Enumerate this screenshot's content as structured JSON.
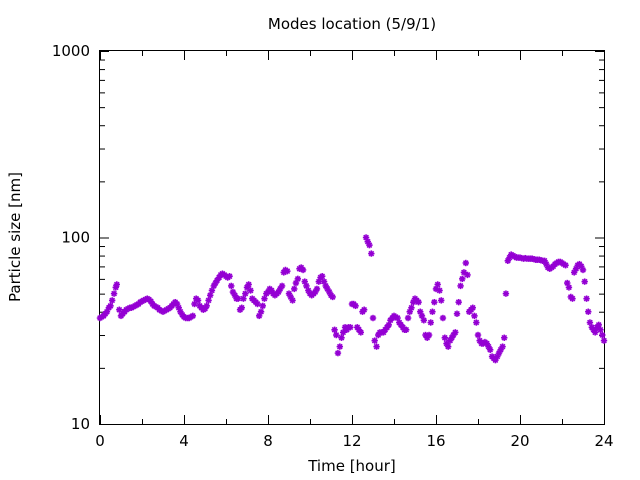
{
  "chart_data": {
    "type": "scatter",
    "title": "Modes location (5/9/1)",
    "xlabel": "Time [hour]",
    "ylabel": "Particle size [nm]",
    "xlim": [
      0,
      24
    ],
    "ylim": [
      10,
      1000
    ],
    "yscale": "log",
    "grid": false,
    "legend": "none",
    "marker": "asterisk",
    "color": "#9400d3",
    "xticks": [
      0,
      4,
      8,
      12,
      16,
      20,
      24
    ],
    "xtick_labels": [
      "0",
      "4",
      "8",
      "12",
      "16",
      "20",
      "24"
    ],
    "yticks": [
      10,
      100,
      1000
    ],
    "ytick_labels": [
      "10",
      "100",
      "1000"
    ],
    "points": [
      [
        0.0,
        37
      ],
      [
        0.08,
        37.5
      ],
      [
        0.17,
        38
      ],
      [
        0.25,
        39
      ],
      [
        0.33,
        40
      ],
      [
        0.42,
        42
      ],
      [
        0.5,
        43
      ],
      [
        0.58,
        46
      ],
      [
        0.67,
        50
      ],
      [
        0.75,
        54
      ],
      [
        0.8,
        56
      ],
      [
        0.92,
        41
      ],
      [
        1.0,
        38
      ],
      [
        1.08,
        39
      ],
      [
        1.17,
        40
      ],
      [
        1.25,
        41
      ],
      [
        1.33,
        41.5
      ],
      [
        1.42,
        42
      ],
      [
        1.5,
        42
      ],
      [
        1.58,
        42.5
      ],
      [
        1.67,
        43
      ],
      [
        1.75,
        43.5
      ],
      [
        1.83,
        44
      ],
      [
        1.92,
        45
      ],
      [
        2.0,
        45.5
      ],
      [
        2.08,
        46
      ],
      [
        2.17,
        46.5
      ],
      [
        2.25,
        47
      ],
      [
        2.33,
        46.5
      ],
      [
        2.42,
        45.5
      ],
      [
        2.5,
        44
      ],
      [
        2.58,
        43
      ],
      [
        2.67,
        42.5
      ],
      [
        2.75,
        42
      ],
      [
        2.83,
        41
      ],
      [
        2.92,
        40.5
      ],
      [
        3.0,
        40
      ],
      [
        3.08,
        40.5
      ],
      [
        3.17,
        41
      ],
      [
        3.25,
        41.5
      ],
      [
        3.33,
        42
      ],
      [
        3.42,
        43
      ],
      [
        3.5,
        44
      ],
      [
        3.58,
        45
      ],
      [
        3.67,
        44
      ],
      [
        3.75,
        42
      ],
      [
        3.83,
        40
      ],
      [
        3.92,
        38.5
      ],
      [
        4.0,
        37.5
      ],
      [
        4.08,
        37
      ],
      [
        4.17,
        37
      ],
      [
        4.25,
        37
      ],
      [
        4.33,
        37.5
      ],
      [
        4.42,
        38
      ],
      [
        4.5,
        44
      ],
      [
        4.58,
        47
      ],
      [
        4.67,
        46
      ],
      [
        4.75,
        43
      ],
      [
        4.83,
        42
      ],
      [
        4.92,
        41
      ],
      [
        5.0,
        41.5
      ],
      [
        5.08,
        43
      ],
      [
        5.17,
        46
      ],
      [
        5.25,
        49
      ],
      [
        5.33,
        52
      ],
      [
        5.42,
        55
      ],
      [
        5.5,
        57
      ],
      [
        5.58,
        59
      ],
      [
        5.67,
        61
      ],
      [
        5.75,
        63
      ],
      [
        5.83,
        64
      ],
      [
        5.92,
        63
      ],
      [
        6.0,
        62
      ],
      [
        6.08,
        61
      ],
      [
        6.17,
        62
      ],
      [
        6.25,
        55
      ],
      [
        6.33,
        51
      ],
      [
        6.42,
        49
      ],
      [
        6.5,
        47
      ],
      [
        6.58,
        47
      ],
      [
        6.67,
        41
      ],
      [
        6.75,
        42
      ],
      [
        6.83,
        47
      ],
      [
        6.92,
        50
      ],
      [
        7.0,
        54
      ],
      [
        7.08,
        56
      ],
      [
        7.17,
        52
      ],
      [
        7.25,
        47
      ],
      [
        7.33,
        46
      ],
      [
        7.42,
        45
      ],
      [
        7.5,
        44
      ],
      [
        7.58,
        38
      ],
      [
        7.67,
        40
      ],
      [
        7.75,
        43
      ],
      [
        7.83,
        47
      ],
      [
        7.92,
        50
      ],
      [
        8.0,
        51
      ],
      [
        8.08,
        53
      ],
      [
        8.17,
        52
      ],
      [
        8.25,
        50
      ],
      [
        8.33,
        49
      ],
      [
        8.42,
        50
      ],
      [
        8.5,
        51
      ],
      [
        8.58,
        53
      ],
      [
        8.67,
        55
      ],
      [
        8.75,
        65
      ],
      [
        8.83,
        67
      ],
      [
        8.92,
        66
      ],
      [
        9.0,
        50
      ],
      [
        9.08,
        48
      ],
      [
        9.17,
        46
      ],
      [
        9.25,
        53
      ],
      [
        9.33,
        57
      ],
      [
        9.42,
        60
      ],
      [
        9.5,
        68
      ],
      [
        9.58,
        69
      ],
      [
        9.67,
        67
      ],
      [
        9.75,
        58
      ],
      [
        9.83,
        55
      ],
      [
        9.92,
        52
      ],
      [
        10.0,
        50
      ],
      [
        10.08,
        49
      ],
      [
        10.17,
        50
      ],
      [
        10.25,
        51
      ],
      [
        10.33,
        53
      ],
      [
        10.42,
        58
      ],
      [
        10.5,
        61
      ],
      [
        10.58,
        62
      ],
      [
        10.67,
        58
      ],
      [
        10.75,
        55
      ],
      [
        10.83,
        53
      ],
      [
        10.92,
        51
      ],
      [
        11.0,
        49
      ],
      [
        11.08,
        48
      ],
      [
        11.17,
        32
      ],
      [
        11.25,
        30
      ],
      [
        11.33,
        24
      ],
      [
        11.42,
        26
      ],
      [
        11.5,
        29
      ],
      [
        11.58,
        31
      ],
      [
        11.67,
        33
      ],
      [
        11.75,
        32
      ],
      [
        11.83,
        33
      ],
      [
        11.92,
        33
      ],
      [
        12.0,
        44
      ],
      [
        12.08,
        44
      ],
      [
        12.17,
        43
      ],
      [
        12.25,
        33
      ],
      [
        12.33,
        32
      ],
      [
        12.42,
        31
      ],
      [
        12.5,
        40
      ],
      [
        12.58,
        41
      ],
      [
        12.67,
        100
      ],
      [
        12.75,
        95
      ],
      [
        12.83,
        91
      ],
      [
        12.92,
        82
      ],
      [
        13.0,
        37
      ],
      [
        13.08,
        28
      ],
      [
        13.17,
        26
      ],
      [
        13.25,
        30
      ],
      [
        13.33,
        31
      ],
      [
        13.42,
        31
      ],
      [
        13.5,
        31
      ],
      [
        13.58,
        32
      ],
      [
        13.67,
        33
      ],
      [
        13.75,
        34
      ],
      [
        13.83,
        36
      ],
      [
        13.92,
        37
      ],
      [
        14.0,
        38
      ],
      [
        14.08,
        37.5
      ],
      [
        14.17,
        37
      ],
      [
        14.25,
        35
      ],
      [
        14.33,
        34
      ],
      [
        14.42,
        33
      ],
      [
        14.5,
        32
      ],
      [
        14.58,
        32
      ],
      [
        14.67,
        37
      ],
      [
        14.75,
        40
      ],
      [
        14.83,
        42
      ],
      [
        14.92,
        45
      ],
      [
        15.0,
        47
      ],
      [
        15.08,
        46
      ],
      [
        15.17,
        45
      ],
      [
        15.25,
        40
      ],
      [
        15.33,
        38
      ],
      [
        15.42,
        36
      ],
      [
        15.5,
        30
      ],
      [
        15.58,
        29
      ],
      [
        15.67,
        30
      ],
      [
        15.75,
        35
      ],
      [
        15.83,
        40
      ],
      [
        15.92,
        45
      ],
      [
        16.0,
        53
      ],
      [
        16.08,
        56
      ],
      [
        16.17,
        52
      ],
      [
        16.25,
        46
      ],
      [
        16.33,
        37
      ],
      [
        16.42,
        29
      ],
      [
        16.5,
        27
      ],
      [
        16.58,
        26
      ],
      [
        16.67,
        28
      ],
      [
        16.75,
        29
      ],
      [
        16.83,
        30
      ],
      [
        16.92,
        31
      ],
      [
        17.0,
        39
      ],
      [
        17.08,
        45
      ],
      [
        17.17,
        55
      ],
      [
        17.25,
        60
      ],
      [
        17.33,
        65
      ],
      [
        17.42,
        73
      ],
      [
        17.5,
        63
      ],
      [
        17.58,
        40
      ],
      [
        17.67,
        41
      ],
      [
        17.75,
        42
      ],
      [
        17.83,
        38
      ],
      [
        17.92,
        35
      ],
      [
        18.0,
        30
      ],
      [
        18.08,
        28
      ],
      [
        18.17,
        27
      ],
      [
        18.25,
        27
      ],
      [
        18.33,
        27.5
      ],
      [
        18.42,
        27
      ],
      [
        18.5,
        26
      ],
      [
        18.58,
        25
      ],
      [
        18.67,
        23
      ],
      [
        18.75,
        22.5
      ],
      [
        18.83,
        22
      ],
      [
        18.92,
        23
      ],
      [
        19.0,
        24
      ],
      [
        19.08,
        25
      ],
      [
        19.17,
        26
      ],
      [
        19.25,
        29
      ],
      [
        19.33,
        50
      ],
      [
        19.42,
        75
      ],
      [
        19.5,
        78
      ],
      [
        19.58,
        81
      ],
      [
        19.67,
        80
      ],
      [
        19.75,
        79
      ],
      [
        19.83,
        78
      ],
      [
        19.92,
        78
      ],
      [
        20.0,
        78
      ],
      [
        20.08,
        77.5
      ],
      [
        20.17,
        77
      ],
      [
        20.25,
        77.5
      ],
      [
        20.33,
        77
      ],
      [
        20.42,
        77
      ],
      [
        20.5,
        77
      ],
      [
        20.58,
        77
      ],
      [
        20.67,
        76.5
      ],
      [
        20.75,
        76
      ],
      [
        20.83,
        76
      ],
      [
        20.92,
        76
      ],
      [
        21.0,
        75.5
      ],
      [
        21.08,
        75
      ],
      [
        21.17,
        75
      ],
      [
        21.25,
        72
      ],
      [
        21.33,
        69
      ],
      [
        21.42,
        68
      ],
      [
        21.5,
        69
      ],
      [
        21.58,
        70
      ],
      [
        21.67,
        72
      ],
      [
        21.75,
        73
      ],
      [
        21.83,
        74
      ],
      [
        21.92,
        74
      ],
      [
        22.0,
        73
      ],
      [
        22.08,
        72
      ],
      [
        22.17,
        71
      ],
      [
        22.25,
        57
      ],
      [
        22.33,
        54
      ],
      [
        22.42,
        48
      ],
      [
        22.5,
        47
      ],
      [
        22.58,
        65
      ],
      [
        22.67,
        68
      ],
      [
        22.75,
        71
      ],
      [
        22.83,
        72
      ],
      [
        22.92,
        70
      ],
      [
        23.0,
        67
      ],
      [
        23.08,
        58
      ],
      [
        23.17,
        47
      ],
      [
        23.25,
        40
      ],
      [
        23.33,
        35
      ],
      [
        23.42,
        33
      ],
      [
        23.5,
        32
      ],
      [
        23.58,
        31
      ],
      [
        23.67,
        33
      ],
      [
        23.75,
        34
      ],
      [
        23.83,
        32
      ],
      [
        23.92,
        30
      ],
      [
        24.0,
        28
      ]
    ]
  }
}
